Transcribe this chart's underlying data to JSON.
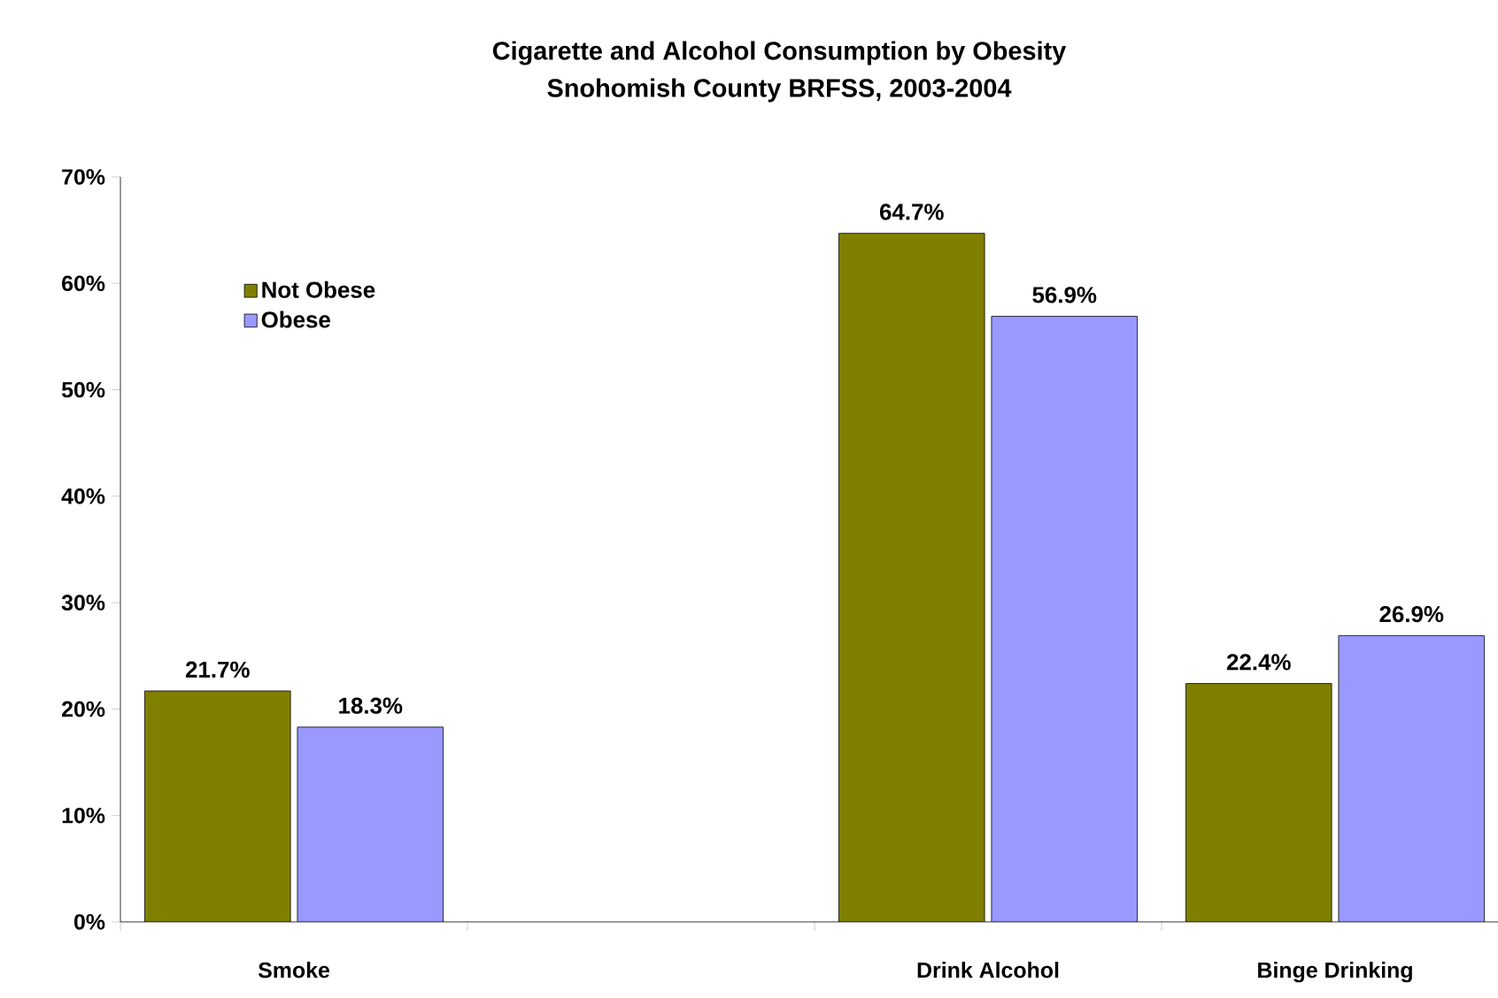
{
  "chart_data": {
    "type": "bar",
    "title": "Cigarette and Alcohol Consumption by Obesity",
    "subtitle": "Snohomish County BRFSS, 2003-2004",
    "categories": [
      "Smoke",
      null,
      "Drink Alcohol",
      "Binge Drinking"
    ],
    "series": [
      {
        "name": "Not Obese",
        "color": "#808000",
        "values": [
          21.7,
          null,
          64.7,
          22.4
        ],
        "value_labels": [
          "21.7%",
          null,
          "64.7%",
          "22.4%"
        ]
      },
      {
        "name": "Obese",
        "color": "#9999ff",
        "values": [
          18.3,
          null,
          56.9,
          26.9
        ],
        "value_labels": [
          "18.3%",
          null,
          "56.9%",
          "26.9%"
        ]
      }
    ],
    "ylim": [
      0,
      70
    ],
    "yticks": [
      {
        "value": 0,
        "label": "0%"
      },
      {
        "value": 10,
        "label": "10%"
      },
      {
        "value": 20,
        "label": "20%"
      },
      {
        "value": 30,
        "label": "30%"
      },
      {
        "value": 40,
        "label": "40%"
      },
      {
        "value": 50,
        "label": "50%"
      },
      {
        "value": 60,
        "label": "60%"
      },
      {
        "value": 70,
        "label": "70%"
      }
    ],
    "grid": false,
    "legend": "top left"
  }
}
